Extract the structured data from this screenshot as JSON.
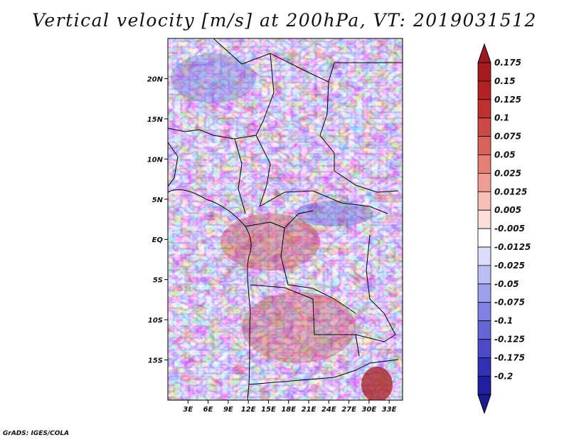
{
  "title": "Vertical velocity [m/s] at 200hPa, VT: 2019031512",
  "credit": "GrADS: IGES/COLA",
  "map": {
    "lat_range": [
      -20,
      25
    ],
    "lon_range": [
      0,
      35
    ],
    "lat_ticks": [
      {
        "value": 20,
        "label": "20N"
      },
      {
        "value": 15,
        "label": "15N"
      },
      {
        "value": 10,
        "label": "10N"
      },
      {
        "value": 5,
        "label": "5N"
      },
      {
        "value": 0,
        "label": "EQ"
      },
      {
        "value": -5,
        "label": "5S"
      },
      {
        "value": -10,
        "label": "10S"
      },
      {
        "value": -15,
        "label": "15S"
      }
    ],
    "lon_ticks": [
      {
        "value": 3,
        "label": "3E"
      },
      {
        "value": 6,
        "label": "6E"
      },
      {
        "value": 9,
        "label": "9E"
      },
      {
        "value": 12,
        "label": "12E"
      },
      {
        "value": 15,
        "label": "15E"
      },
      {
        "value": 18,
        "label": "18E"
      },
      {
        "value": 21,
        "label": "21E"
      },
      {
        "value": 24,
        "label": "24E"
      },
      {
        "value": 27,
        "label": "27E"
      },
      {
        "value": 30,
        "label": "30E"
      },
      {
        "value": 33,
        "label": "33E"
      }
    ]
  },
  "colorbar": {
    "levels": [
      {
        "label": "0.175",
        "color": "#a51a1f"
      },
      {
        "label": "0.15",
        "color": "#b32125"
      },
      {
        "label": "0.125",
        "color": "#c0302f"
      },
      {
        "label": "0.1",
        "color": "#cc4a45"
      },
      {
        "label": "0.075",
        "color": "#d9625b"
      },
      {
        "label": "0.05",
        "color": "#e47f76"
      },
      {
        "label": "0.025",
        "color": "#ef9e95"
      },
      {
        "label": "0.0125",
        "color": "#f6bfb8"
      },
      {
        "label": "0.005",
        "color": "#fcdfdb"
      },
      {
        "label": "-0.005",
        "color": "#ffffff"
      },
      {
        "label": "-0.0125",
        "color": "#dcdcfb"
      },
      {
        "label": "-0.025",
        "color": "#bdbdf6"
      },
      {
        "label": "-0.05",
        "color": "#9f9fef"
      },
      {
        "label": "-0.075",
        "color": "#8181e4"
      },
      {
        "label": "-0.1",
        "color": "#6565d6"
      },
      {
        "label": "-0.125",
        "color": "#4b4bc8"
      },
      {
        "label": "-0.175",
        "color": "#3131b4"
      },
      {
        "label": "-0.2",
        "color": "#1f1fa0"
      }
    ],
    "top_arrow_color": "#9e1a1f",
    "bottom_arrow_color": "#1c1c8e"
  }
}
